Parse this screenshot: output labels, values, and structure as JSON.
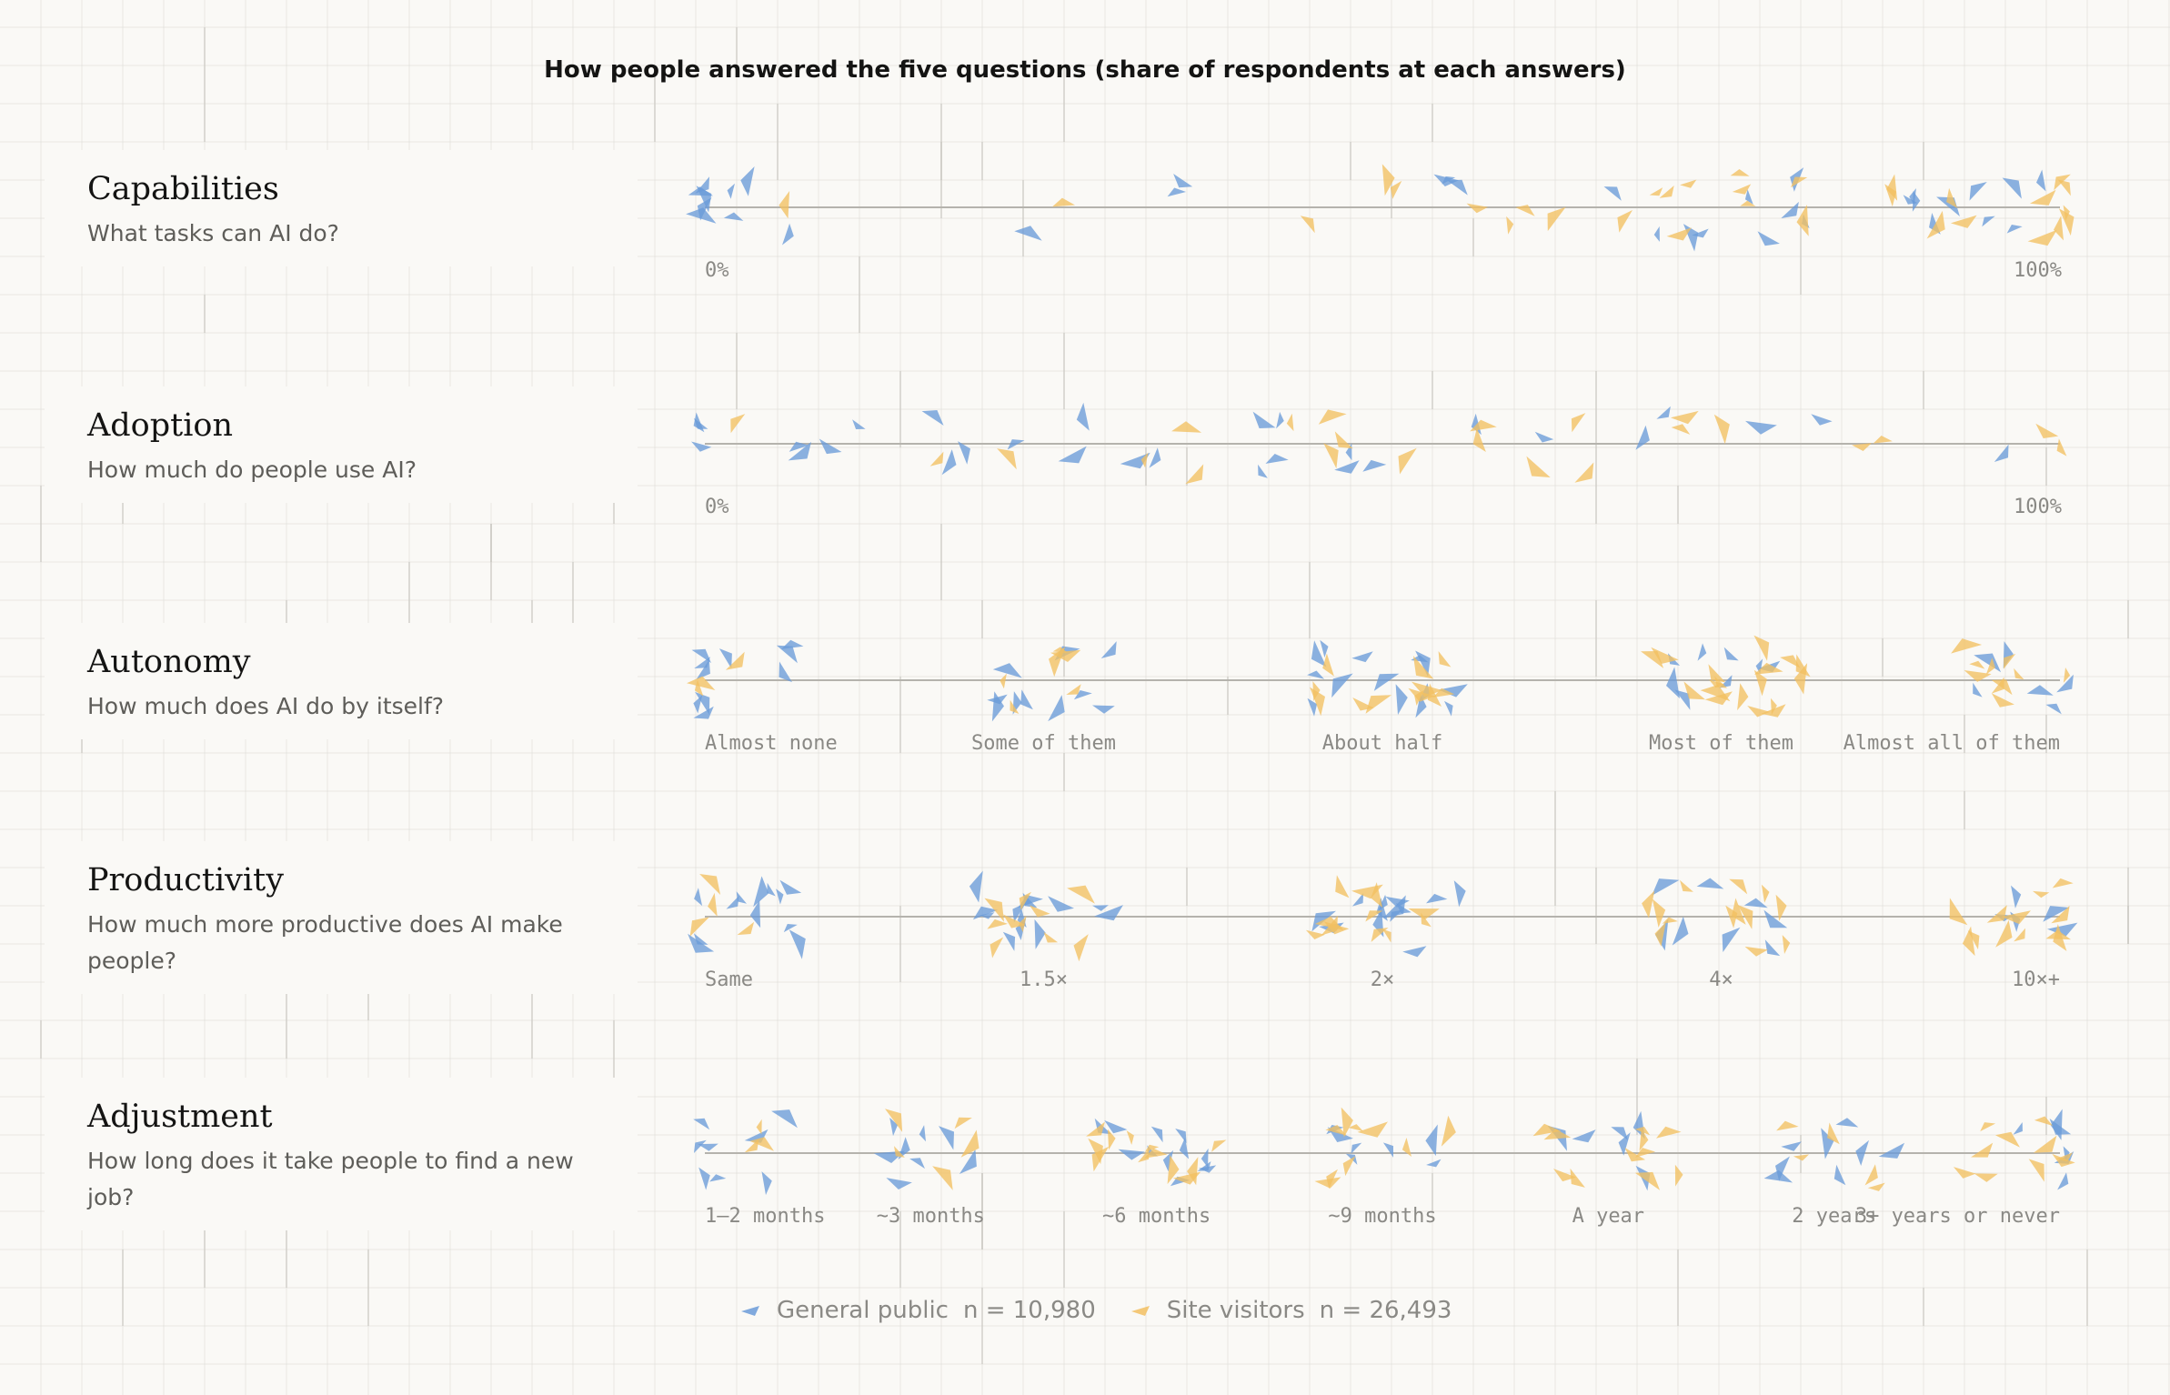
{
  "colors": {
    "general_public": "#6a9bd8",
    "site_visitors": "#f2c061",
    "baseline": "#b5b3ad",
    "grid": "#dcdad4"
  },
  "chart_data": {
    "type": "scatter",
    "title": "How people answered the five questions (share of respondents at each answers)",
    "grid": true,
    "legend_position": "bottom-center",
    "series": [
      {
        "name": "General public",
        "n": "n = 10,980",
        "color": "#6a9bd8"
      },
      {
        "name": "Site visitors",
        "n": "n = 26,493",
        "color": "#f2c061"
      }
    ],
    "rows": [
      {
        "name": "Capabilities",
        "question": "What tasks can AI do?",
        "scale": "continuous",
        "xlim": [
          0,
          100
        ],
        "ticks": [
          {
            "value": 0,
            "label": "0%"
          },
          {
            "value": 100,
            "label": "100%"
          }
        ],
        "general_public_density": [
          [
            0,
            6
          ],
          [
            4,
            3
          ],
          [
            25,
            1
          ],
          [
            35,
            2
          ],
          [
            55,
            3
          ],
          [
            70,
            4
          ],
          [
            80,
            5
          ],
          [
            92,
            6
          ],
          [
            97,
            4
          ]
        ],
        "site_visitors_density": [
          [
            10,
            1
          ],
          [
            30,
            1
          ],
          [
            48,
            3
          ],
          [
            60,
            4
          ],
          [
            70,
            5
          ],
          [
            80,
            5
          ],
          [
            90,
            5
          ],
          [
            100,
            7
          ]
        ]
      },
      {
        "name": "Adoption",
        "question": "How much do people use AI?",
        "scale": "continuous",
        "xlim": [
          0,
          100
        ],
        "ticks": [
          {
            "value": 0,
            "label": "0%"
          },
          {
            "value": 100,
            "label": "100%"
          }
        ],
        "general_public_density": [
          [
            0,
            3
          ],
          [
            10,
            4
          ],
          [
            20,
            4
          ],
          [
            30,
            4
          ],
          [
            40,
            4
          ],
          [
            50,
            3
          ],
          [
            60,
            2
          ],
          [
            70,
            2
          ],
          [
            80,
            2
          ],
          [
            95,
            1
          ]
        ],
        "site_visitors_density": [
          [
            5,
            1
          ],
          [
            20,
            2
          ],
          [
            35,
            3
          ],
          [
            45,
            4
          ],
          [
            55,
            3
          ],
          [
            65,
            3
          ],
          [
            75,
            3
          ],
          [
            85,
            2
          ],
          [
            100,
            2
          ]
        ]
      },
      {
        "name": "Autonomy",
        "question": "How much does AI do by itself?",
        "scale": "categorical",
        "categories": [
          "Almost none",
          "Some of them",
          "About half",
          "Most of them",
          "Almost all of them"
        ],
        "general_public_counts": [
          10,
          10,
          14,
          8,
          6
        ],
        "site_visitors_counts": [
          3,
          6,
          12,
          18,
          10
        ]
      },
      {
        "name": "Productivity",
        "question": "How much more productive does AI make people?",
        "scale": "categorical",
        "categories": [
          "Same",
          "1.5×",
          "2×",
          "4×",
          "10×+"
        ],
        "general_public_counts": [
          12,
          13,
          13,
          8,
          5
        ],
        "site_visitors_counts": [
          4,
          10,
          12,
          13,
          12
        ]
      },
      {
        "name": "Adjustment",
        "question": "How long does it take people to find a new job?",
        "scale": "categorical",
        "categories": [
          "1–2 months",
          "~3 months",
          "~6 months",
          "~9 months",
          "A year",
          "2 years",
          "3+ years or never"
        ],
        "general_public_counts": [
          8,
          8,
          12,
          7,
          6,
          8,
          6
        ],
        "site_visitors_counts": [
          3,
          5,
          12,
          9,
          11,
          5,
          10
        ]
      }
    ]
  }
}
